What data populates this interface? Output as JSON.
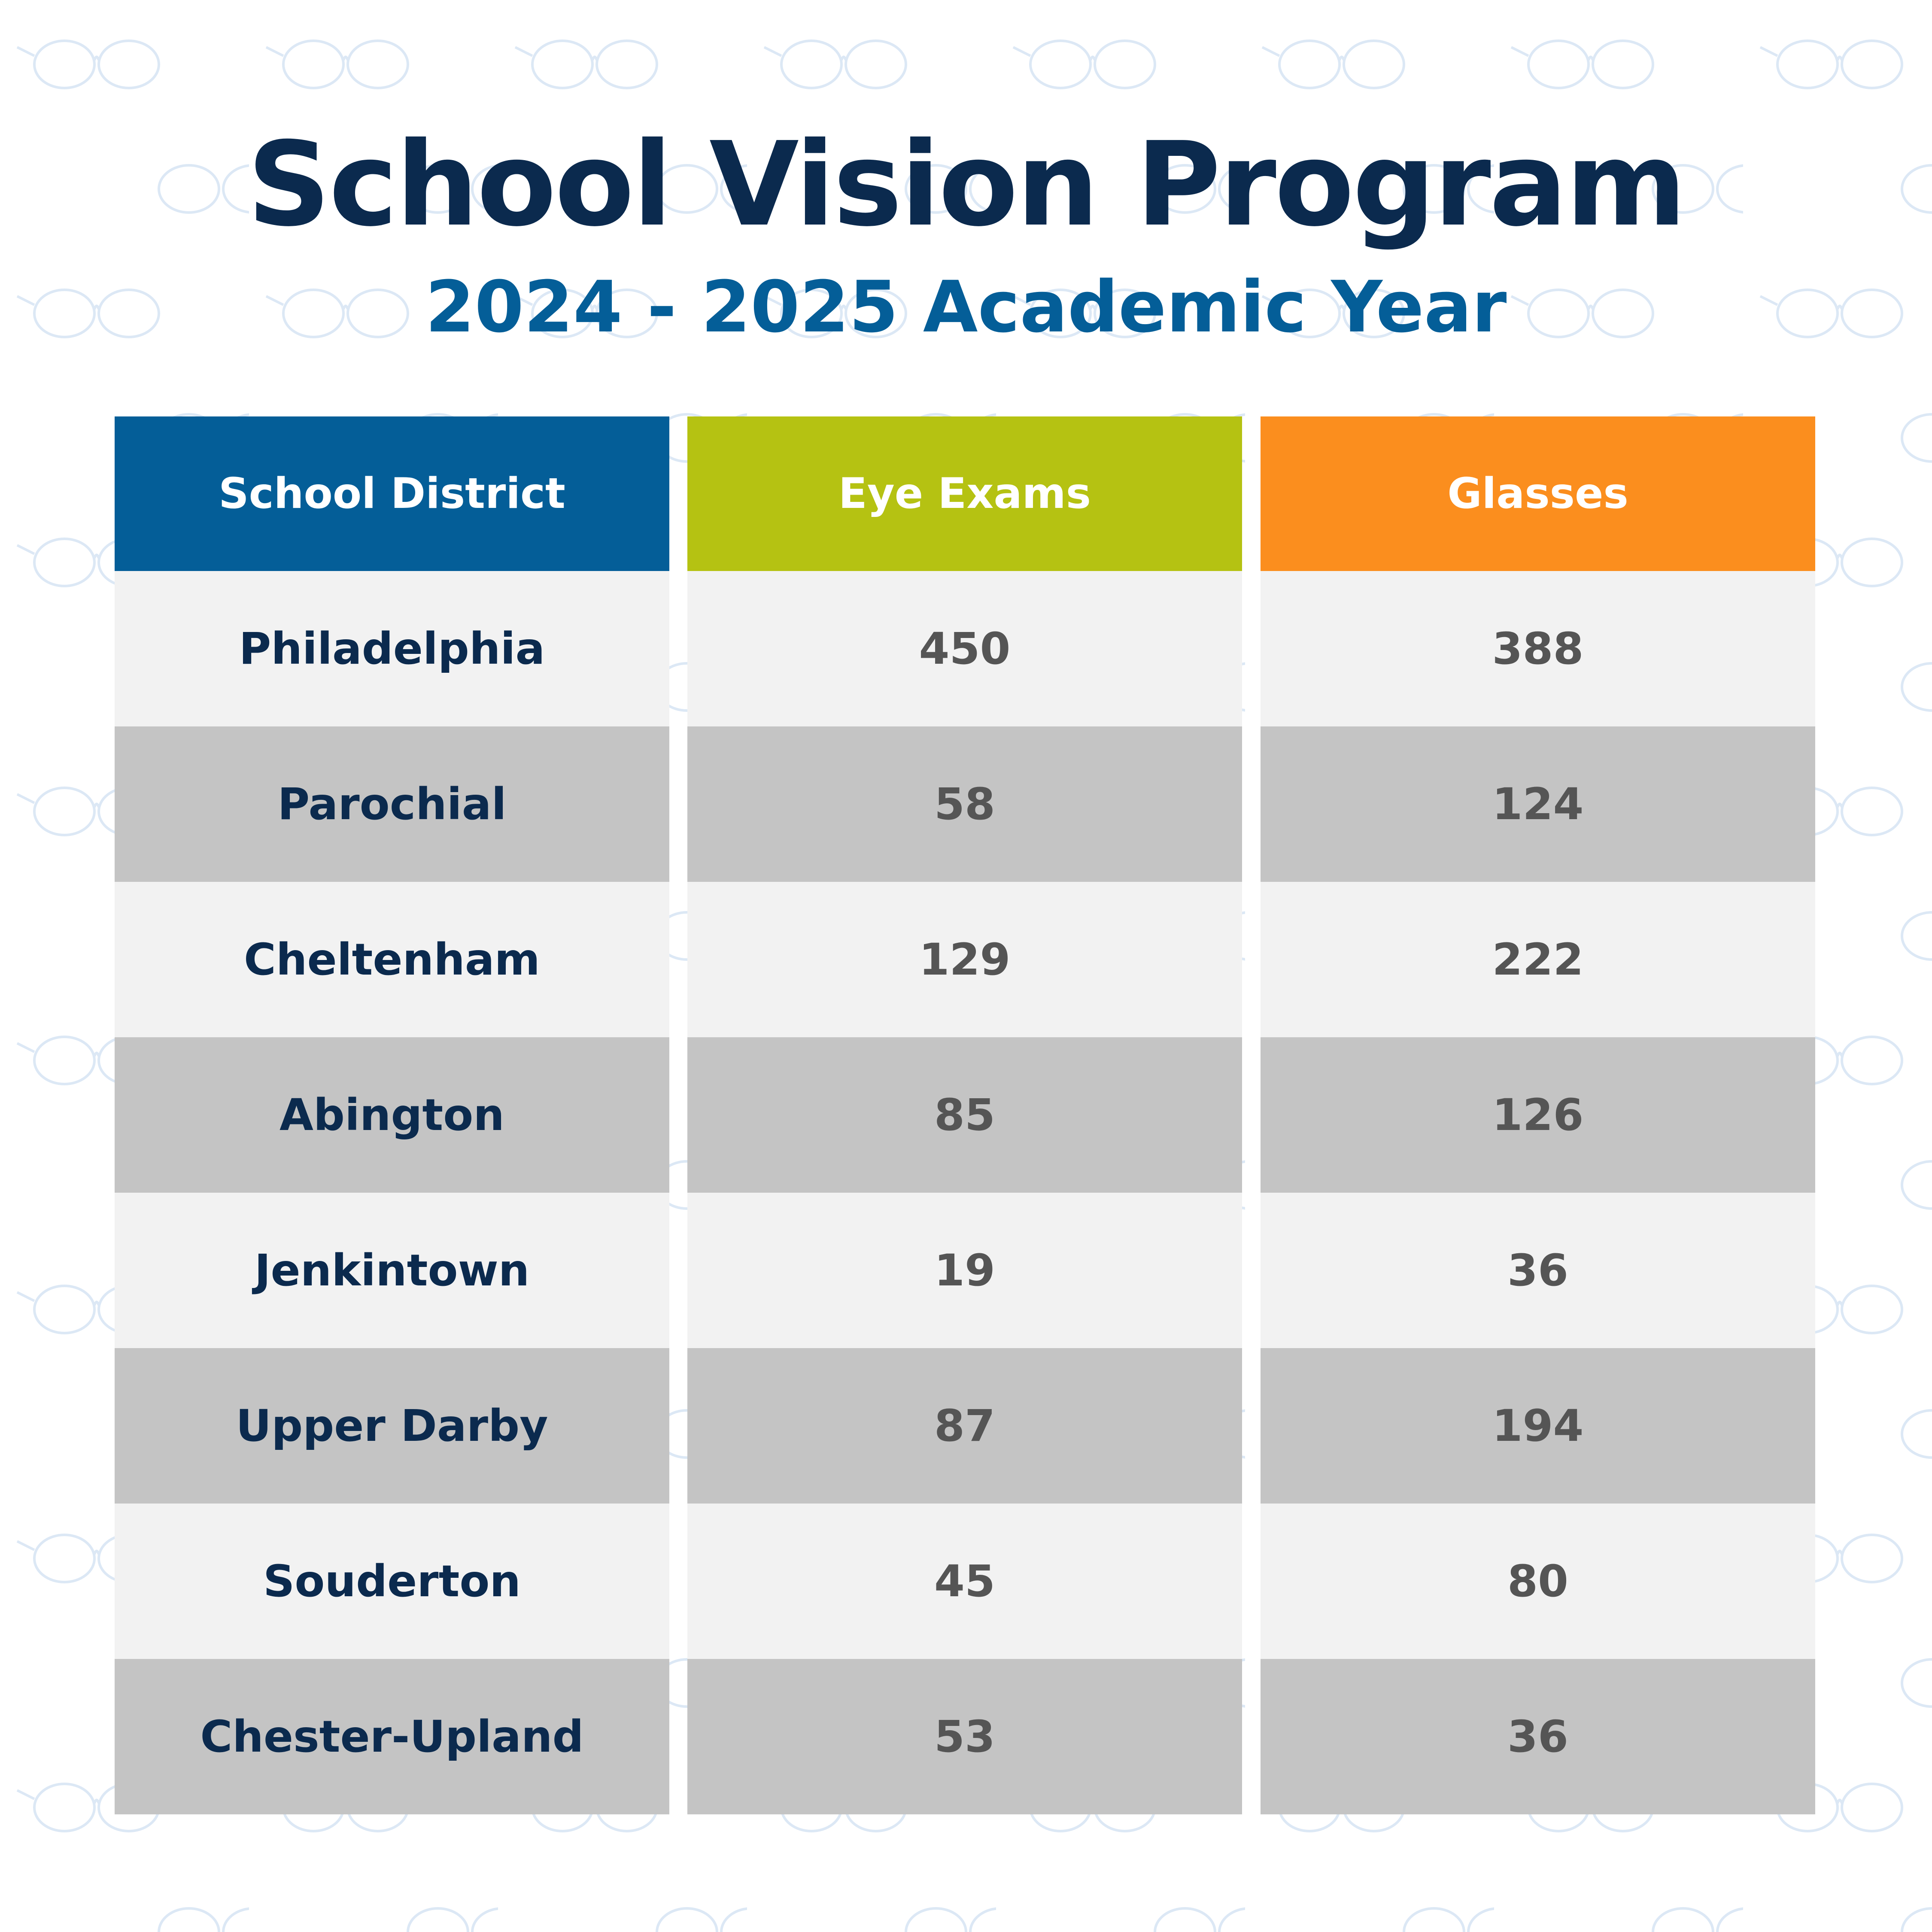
{
  "header": {
    "title": "School Vision Program",
    "subtitle": "2024 - 2025 Academic Year"
  },
  "table": {
    "columns": [
      "School District",
      "Eye Exams",
      "Glasses"
    ],
    "rows": [
      [
        "Philadelphia",
        450,
        388
      ],
      [
        "Parochial",
        58,
        124
      ],
      [
        "Cheltenham",
        129,
        222
      ],
      [
        "Abington",
        85,
        126
      ],
      [
        "Jenkintown",
        19,
        36
      ],
      [
        "Upper Darby",
        87,
        194
      ],
      [
        "Souderton",
        45,
        80
      ],
      [
        "Chester-Upland",
        53,
        36
      ]
    ]
  }
}
